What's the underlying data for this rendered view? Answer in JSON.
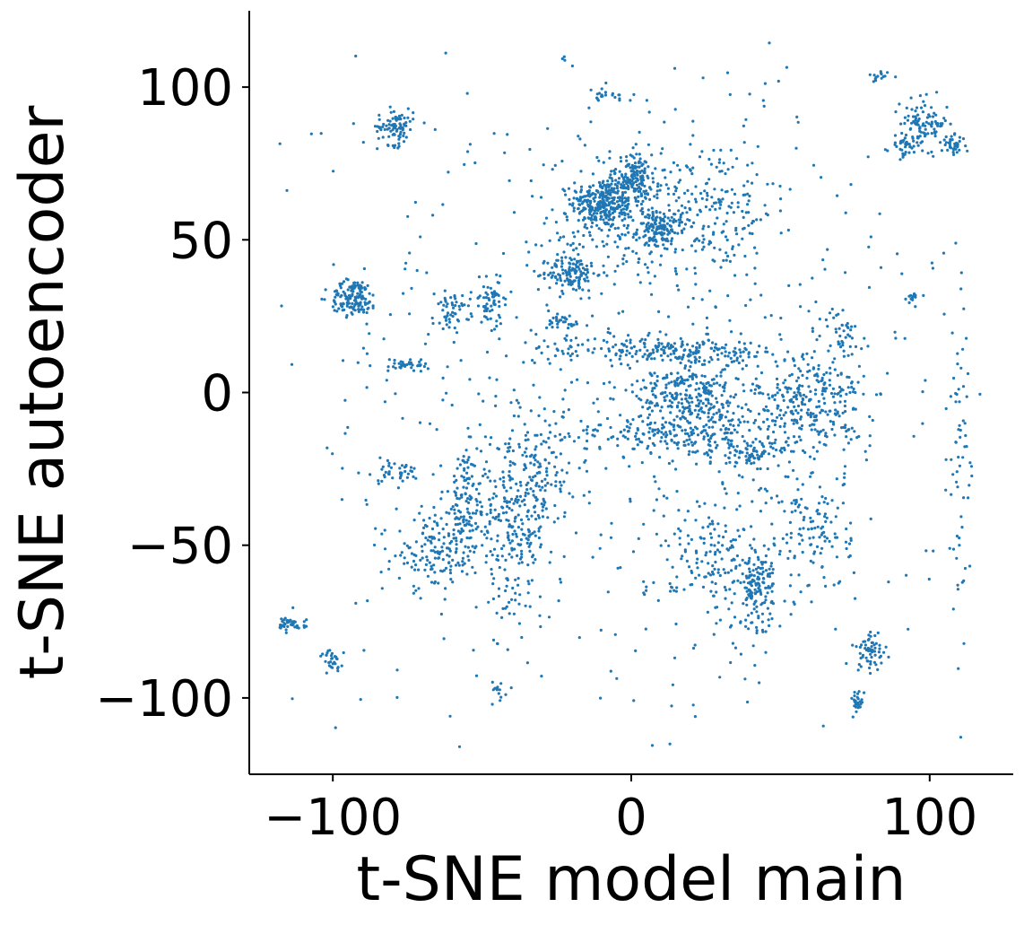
{
  "chart_data": {
    "type": "scatter",
    "title": "",
    "xlabel": "t-SNE model main",
    "ylabel": "t-SNE autoencoder",
    "xlim": [
      -128,
      128
    ],
    "ylim": [
      -125,
      125
    ],
    "xticks": [
      -100,
      0,
      100
    ],
    "xtick_labels": [
      "−100",
      "0",
      "100"
    ],
    "yticks": [
      -100,
      -50,
      0,
      50,
      100
    ],
    "ytick_labels": [
      "−100",
      "−50",
      "0",
      "50",
      "100"
    ],
    "grid": false,
    "legend": "none",
    "point_color": "#1f77b4",
    "clusters": [
      {
        "cx": -10,
        "cy": 62,
        "sx": 5,
        "sy": 4,
        "n": 260
      },
      {
        "cx": 1,
        "cy": 70,
        "sx": 3,
        "sy": 4,
        "n": 140
      },
      {
        "cx": 10,
        "cy": 53,
        "sx": 4,
        "sy": 3,
        "n": 120
      },
      {
        "cx": 0,
        "cy": 58,
        "sx": 14,
        "sy": 10,
        "n": 240
      },
      {
        "cx": 30,
        "cy": 60,
        "sx": 9,
        "sy": 12,
        "n": 140
      },
      {
        "cx": -20,
        "cy": 39,
        "sx": 4,
        "sy": 3,
        "n": 120
      },
      {
        "cx": -93,
        "cy": 31,
        "sx": 4,
        "sy": 3,
        "n": 140
      },
      {
        "cx": -79,
        "cy": 87,
        "sx": 3,
        "sy": 3,
        "n": 90
      },
      {
        "cx": 98,
        "cy": 88,
        "sx": 4,
        "sy": 4,
        "n": 100
      },
      {
        "cx": 108,
        "cy": 81,
        "sx": 2,
        "sy": 1.5,
        "n": 40
      },
      {
        "cx": 91,
        "cy": 81,
        "sx": 2,
        "sy": 2,
        "n": 30
      },
      {
        "cx": 20,
        "cy": 0,
        "sx": 9,
        "sy": 8,
        "n": 330
      },
      {
        "cx": 60,
        "cy": -3,
        "sx": 9,
        "sy": 8,
        "n": 270
      },
      {
        "cx": 10,
        "cy": 14,
        "sx": 25,
        "sy": 2,
        "n": 200
      },
      {
        "cx": 15,
        "cy": -14,
        "sx": 25,
        "sy": 4,
        "n": 220
      },
      {
        "cx": 40,
        "cy": -20,
        "sx": 6,
        "sy": 2,
        "n": 70
      },
      {
        "cx": -47,
        "cy": 30,
        "sx": 3,
        "sy": 4,
        "n": 60
      },
      {
        "cx": -60,
        "cy": 27,
        "sx": 3,
        "sy": 3,
        "n": 50
      },
      {
        "cx": -75,
        "cy": 9,
        "sx": 6,
        "sy": 1,
        "n": 40
      },
      {
        "cx": -55,
        "cy": -35,
        "sx": 4,
        "sy": 8,
        "n": 110
      },
      {
        "cx": -40,
        "cy": -45,
        "sx": 6,
        "sy": 14,
        "n": 230
      },
      {
        "cx": -65,
        "cy": -52,
        "sx": 7,
        "sy": 6,
        "n": 150
      },
      {
        "cx": -80,
        "cy": -26,
        "sx": 5,
        "sy": 2,
        "n": 40
      },
      {
        "cx": -30,
        "cy": -30,
        "sx": 4,
        "sy": 8,
        "n": 90
      },
      {
        "cx": 42,
        "cy": -64,
        "sx": 3,
        "sy": 6,
        "n": 120
      },
      {
        "cx": 30,
        "cy": -55,
        "sx": 12,
        "sy": 12,
        "n": 180
      },
      {
        "cx": 62,
        "cy": -45,
        "sx": 6,
        "sy": 10,
        "n": 110
      },
      {
        "cx": -115,
        "cy": -76,
        "sx": 3,
        "sy": 1,
        "n": 50
      },
      {
        "cx": -100,
        "cy": -88,
        "sx": 2,
        "sy": 2,
        "n": 30
      },
      {
        "cx": 80,
        "cy": -85,
        "sx": 3,
        "sy": 3,
        "n": 60
      },
      {
        "cx": 76,
        "cy": -101,
        "sx": 1,
        "sy": 2,
        "n": 25
      },
      {
        "cx": 110,
        "cy": -20,
        "sx": 2,
        "sy": 25,
        "n": 60
      },
      {
        "cx": -8,
        "cy": 97,
        "sx": 3,
        "sy": 1,
        "n": 20
      },
      {
        "cx": 82,
        "cy": 103,
        "sx": 2,
        "sy": 1,
        "n": 15
      },
      {
        "cx": 94,
        "cy": 31,
        "sx": 2,
        "sy": 1,
        "n": 15
      },
      {
        "cx": -44,
        "cy": -97,
        "sx": 2,
        "sy": 2,
        "n": 15
      },
      {
        "cx": -23,
        "cy": 23,
        "sx": 3,
        "sy": 1,
        "n": 30
      },
      {
        "cx": 70,
        "cy": 20,
        "sx": 3,
        "sy": 4,
        "n": 40
      },
      {
        "cx": 0,
        "cy": 0,
        "sx": 58,
        "sy": 58,
        "n": 650
      }
    ]
  }
}
